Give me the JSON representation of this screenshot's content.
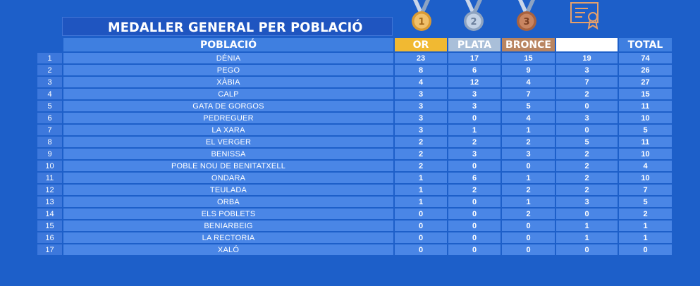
{
  "title": "MEDALLER GENERAL PER POBLACIÓ",
  "medals": {
    "gold_number": "1",
    "silver_number": "2",
    "bronze_number": "3",
    "gold_color": "#e4a53a",
    "silver_color": "#9fb2c9",
    "bronze_color": "#b8734c"
  },
  "headers": {
    "town": "POBLACIÓ",
    "or": "OR",
    "plata": "PLATA",
    "bronce": "BRONCE",
    "diploma": "DIPLOMA",
    "total": "TOTAL"
  },
  "rows": [
    {
      "rank": "1",
      "town": "DÉNIA",
      "or": "23",
      "plata": "17",
      "bronce": "15",
      "diploma": "19",
      "total": "74"
    },
    {
      "rank": "2",
      "town": "PEGO",
      "or": "8",
      "plata": "6",
      "bronce": "9",
      "diploma": "3",
      "total": "26"
    },
    {
      "rank": "3",
      "town": "XÀBIA",
      "or": "4",
      "plata": "12",
      "bronce": "4",
      "diploma": "7",
      "total": "27"
    },
    {
      "rank": "4",
      "town": "CALP",
      "or": "3",
      "plata": "3",
      "bronce": "7",
      "diploma": "2",
      "total": "15"
    },
    {
      "rank": "5",
      "town": "GATA DE GORGOS",
      "or": "3",
      "plata": "3",
      "bronce": "5",
      "diploma": "0",
      "total": "11"
    },
    {
      "rank": "6",
      "town": "PEDREGUER",
      "or": "3",
      "plata": "0",
      "bronce": "4",
      "diploma": "3",
      "total": "10"
    },
    {
      "rank": "7",
      "town": "LA XARA",
      "or": "3",
      "plata": "1",
      "bronce": "1",
      "diploma": "0",
      "total": "5"
    },
    {
      "rank": "8",
      "town": "EL VERGER",
      "or": "2",
      "plata": "2",
      "bronce": "2",
      "diploma": "5",
      "total": "11"
    },
    {
      "rank": "9",
      "town": "BENISSA",
      "or": "2",
      "plata": "3",
      "bronce": "3",
      "diploma": "2",
      "total": "10"
    },
    {
      "rank": "10",
      "town": "POBLE NOU DE BENITATXELL",
      "or": "2",
      "plata": "0",
      "bronce": "0",
      "diploma": "2",
      "total": "4"
    },
    {
      "rank": "11",
      "town": "ONDARA",
      "or": "1",
      "plata": "6",
      "bronce": "1",
      "diploma": "2",
      "total": "10"
    },
    {
      "rank": "12",
      "town": "TEULADA",
      "or": "1",
      "plata": "2",
      "bronce": "2",
      "diploma": "2",
      "total": "7"
    },
    {
      "rank": "13",
      "town": "ORBA",
      "or": "1",
      "plata": "0",
      "bronce": "1",
      "diploma": "3",
      "total": "5"
    },
    {
      "rank": "14",
      "town": "ELS POBLETS",
      "or": "0",
      "plata": "0",
      "bronce": "2",
      "diploma": "0",
      "total": "2"
    },
    {
      "rank": "15",
      "town": "BENIARBEIG",
      "or": "0",
      "plata": "0",
      "bronce": "0",
      "diploma": "1",
      "total": "1"
    },
    {
      "rank": "16",
      "town": "LA RECTORIA",
      "or": "0",
      "plata": "0",
      "bronce": "0",
      "diploma": "1",
      "total": "1"
    },
    {
      "rank": "17",
      "town": "XALÓ",
      "or": "0",
      "plata": "0",
      "bronce": "0",
      "diploma": "0",
      "total": "0"
    }
  ]
}
